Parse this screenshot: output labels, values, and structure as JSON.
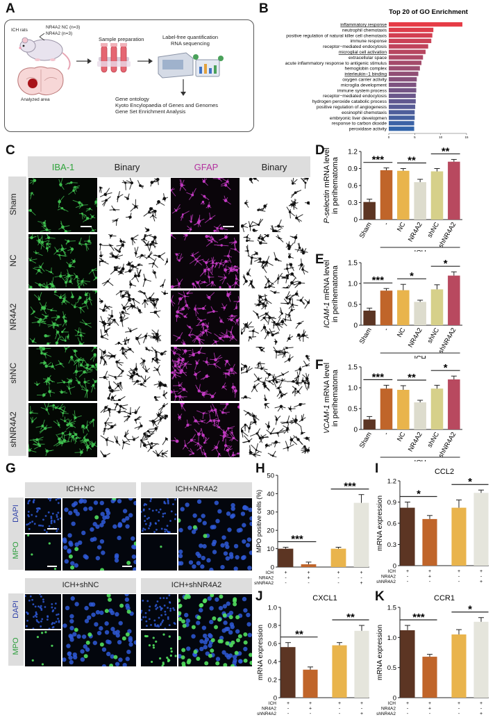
{
  "panels": {
    "A": "A",
    "B": "B",
    "C": "C",
    "D": "D",
    "E": "E",
    "F": "F",
    "G": "G",
    "H": "H",
    "I": "I",
    "J": "J",
    "K": "K"
  },
  "panelA": {
    "ich_rats": "ICH rats",
    "group1": "NR4A2 NC (n=3)",
    "group2": "NR4A2 (n=3)",
    "analyzed": "Analyzed area",
    "sample_prep": "Sample preparation",
    "lfq": "Label-free quantification",
    "rnaseq": "RNA sequencing",
    "go": "Gene ontology",
    "kegg": "Kyoto Encylopaedia of Genes and Genomes",
    "gsea": "Gene Set Enrichment Analysis"
  },
  "panelC": {
    "headers": [
      "IBA-1",
      "Binary",
      "GFAP",
      "Binary"
    ],
    "rows": [
      "Sham",
      "NC",
      "NR4A2",
      "shNC",
      "shNR4A2"
    ]
  },
  "panelG": {
    "top_left": "ICH+NC",
    "top_right": "ICH+NR4A2",
    "bottom_left": "ICH+shNC",
    "bottom_right": "ICH+shNR4A2",
    "dapi": "DAPI",
    "mpo": "MPO"
  },
  "icons": {
    "rat": "rat-icon",
    "brain": "brain-section-icon",
    "tubes": "test-tubes-icon",
    "sequencer": "sequencer-icon",
    "arrow": "arrow-icon"
  },
  "colors": {
    "sham": "#5c3523",
    "ich": "#c0652a",
    "nc": "#e9b44c",
    "nr4a2": "#dddccd",
    "shnc": "#d6d08a",
    "shnr4a2": "#b8495f",
    "bar_light": "#e5e5dc",
    "iba": "#3fbf4f",
    "gfap": "#c23ac2"
  },
  "chart_data": [
    {
      "id": "B",
      "type": "bar",
      "title": "Top 20 of GO Enrichment",
      "xlabel": "-log10(p.value)",
      "ylabel": "",
      "categories": [
        "inflammatory response",
        "neutrophil chemotaxis",
        "positive regulation of natural killer cell chemotaxis",
        "immune response",
        "receptor−mediated endocytosis",
        "microglial cell activation",
        "extracellular space",
        "acute inflammatory response to antigenic stimulus",
        "hemoglobin complex",
        "interleukin−1 binding",
        "oxygen carrier activity",
        "microglia development",
        "immune system process",
        "receptor−mediated endocytosis",
        "hydrogen peroxide catabolic process",
        "positive regulation of angiogenesis",
        "eosinophil chemotaxis",
        "embryonic liver developmen",
        "response to carbon dioxide",
        "peroxidase activity"
      ],
      "values": [
        14.2,
        8.6,
        8.4,
        8.2,
        7.6,
        7.1,
        6.6,
        6.3,
        6.0,
        5.7,
        5.4,
        5.3,
        5.3,
        5.2,
        5.2,
        5.1,
        5.0,
        5.0,
        4.9,
        4.9
      ],
      "underlined": [
        0,
        5,
        9
      ],
      "xticks": [
        "0",
        "5",
        "10",
        "15"
      ],
      "xlim": [
        0,
        15
      ]
    },
    {
      "id": "D",
      "type": "bar",
      "ylabel": "P-selectin mRNA level\nin perihematoma",
      "categories": [
        "Sham",
        "-",
        "NC",
        "NR4A2",
        "shNC",
        "shNR4A2"
      ],
      "values": [
        0.31,
        0.87,
        0.86,
        0.66,
        0.85,
        1.02
      ],
      "errors": [
        0.05,
        0.04,
        0.04,
        0.05,
        0.05,
        0.04
      ],
      "ylim": [
        0,
        1.2
      ],
      "yticks": [
        "0",
        "0.3",
        "0.6",
        "0.9",
        "1.2"
      ],
      "group_label": "ICH",
      "sig": [
        {
          "from": 0,
          "to": 1,
          "label": "***"
        },
        {
          "from": 2,
          "to": 3,
          "label": "**"
        },
        {
          "from": 4,
          "to": 5,
          "label": "**"
        }
      ]
    },
    {
      "id": "E",
      "type": "bar",
      "ylabel": "ICAM-1 mRNA level\nin perihematoma",
      "categories": [
        "Sham",
        "-",
        "NC",
        "NR4A2",
        "shNC",
        "shNR4A2"
      ],
      "values": [
        0.35,
        0.83,
        0.84,
        0.56,
        0.86,
        1.19
      ],
      "errors": [
        0.06,
        0.05,
        0.14,
        0.04,
        0.11,
        0.09
      ],
      "ylim": [
        0,
        1.5
      ],
      "yticks": [
        "0",
        "0.5",
        "1.0",
        "1.5"
      ],
      "group_label": "ICH",
      "sig": [
        {
          "from": 0,
          "to": 1,
          "label": "***"
        },
        {
          "from": 2,
          "to": 3,
          "label": "*"
        },
        {
          "from": 4,
          "to": 5,
          "label": "*"
        }
      ]
    },
    {
      "id": "F",
      "type": "bar",
      "ylabel": "VCAM-1 mRNA level\nin perihematoma",
      "categories": [
        "Sham",
        "-",
        "NC",
        "NR4A2",
        "shNC",
        "shNR4A2"
      ],
      "values": [
        0.24,
        0.98,
        0.95,
        0.65,
        0.98,
        1.2
      ],
      "errors": [
        0.07,
        0.08,
        0.1,
        0.05,
        0.08,
        0.08
      ],
      "ylim": [
        0,
        1.5
      ],
      "yticks": [
        "0",
        "0.5",
        "1.0",
        "1.5"
      ],
      "group_label": "ICH",
      "sig": [
        {
          "from": 0,
          "to": 1,
          "label": "***"
        },
        {
          "from": 2,
          "to": 3,
          "label": "**"
        },
        {
          "from": 4,
          "to": 5,
          "label": "*"
        }
      ]
    },
    {
      "id": "H",
      "type": "bar",
      "ylabel": "MPO positive cells (%)",
      "values": [
        10,
        1.5,
        10,
        35
      ],
      "errors": [
        0.8,
        1.2,
        0.8,
        4.5
      ],
      "ylim": [
        0,
        50
      ],
      "yticks": [
        "0",
        "10",
        "20",
        "30",
        "40",
        "50"
      ],
      "rows": [
        {
          "label": "ICH",
          "marks": [
            "+",
            "+",
            "+",
            "+"
          ]
        },
        {
          "label": "NR4A2",
          "marks": [
            "-",
            "+",
            "-",
            "-"
          ]
        },
        {
          "label": "shNR4A2",
          "marks": [
            "-",
            "-",
            "-",
            "+"
          ]
        }
      ],
      "sig": [
        {
          "from": 0,
          "to": 1,
          "label": "***"
        },
        {
          "from": 2,
          "to": 3,
          "label": "***"
        }
      ]
    },
    {
      "id": "I",
      "type": "bar",
      "title": "CCL2",
      "ylabel": "mRNA expression",
      "values": [
        0.82,
        0.66,
        0.82,
        1.03
      ],
      "errors": [
        0.08,
        0.05,
        0.11,
        0.04
      ],
      "ylim": [
        0,
        1.2
      ],
      "yticks": [
        "0",
        "0.3",
        "0.6",
        "0.9",
        "1.2"
      ],
      "rows": [
        {
          "label": "ICH",
          "marks": [
            "+",
            "+",
            "+",
            "+"
          ]
        },
        {
          "label": "NR4A2",
          "marks": [
            "-",
            "+",
            "-",
            "-"
          ]
        },
        {
          "label": "shNR4A2",
          "marks": [
            "-",
            "-",
            "-",
            "+"
          ]
        }
      ],
      "sig": [
        {
          "from": 0,
          "to": 1,
          "label": "*"
        },
        {
          "from": 2,
          "to": 3,
          "label": "*"
        }
      ]
    },
    {
      "id": "J",
      "type": "bar",
      "title": "CXCL1",
      "ylabel": "mRNA expression",
      "values": [
        0.56,
        0.31,
        0.58,
        0.74
      ],
      "errors": [
        0.05,
        0.03,
        0.03,
        0.06
      ],
      "ylim": [
        0,
        1.0
      ],
      "yticks": [
        "0",
        "0.2",
        "0.4",
        "0.6",
        "0.8",
        "1.0"
      ],
      "rows": [
        {
          "label": "ICH",
          "marks": [
            "+",
            "+",
            "+",
            "+"
          ]
        },
        {
          "label": "NR4A2",
          "marks": [
            "-",
            "+",
            "-",
            "-"
          ]
        },
        {
          "label": "shNR4A2",
          "marks": [
            "-",
            "-",
            "-",
            "+"
          ]
        }
      ],
      "sig": [
        {
          "from": 0,
          "to": 1,
          "label": "**"
        },
        {
          "from": 2,
          "to": 3,
          "label": "**"
        }
      ]
    },
    {
      "id": "K",
      "type": "bar",
      "title": "CCR1",
      "ylabel": "mRNA expression",
      "values": [
        1.12,
        0.68,
        1.05,
        1.26
      ],
      "errors": [
        0.08,
        0.04,
        0.08,
        0.07
      ],
      "ylim": [
        0,
        1.5
      ],
      "yticks": [
        "0",
        "0.5",
        "1.0",
        "1.5"
      ],
      "rows": [
        {
          "label": "ICH",
          "marks": [
            "+",
            "+",
            "+",
            "+"
          ]
        },
        {
          "label": "NR4A2",
          "marks": [
            "-",
            "+",
            "-",
            "-"
          ]
        },
        {
          "label": "shNR4A2",
          "marks": [
            "-",
            "-",
            "-",
            "+"
          ]
        }
      ],
      "sig": [
        {
          "from": 0,
          "to": 1,
          "label": "***"
        },
        {
          "from": 2,
          "to": 3,
          "label": "*"
        }
      ]
    }
  ]
}
